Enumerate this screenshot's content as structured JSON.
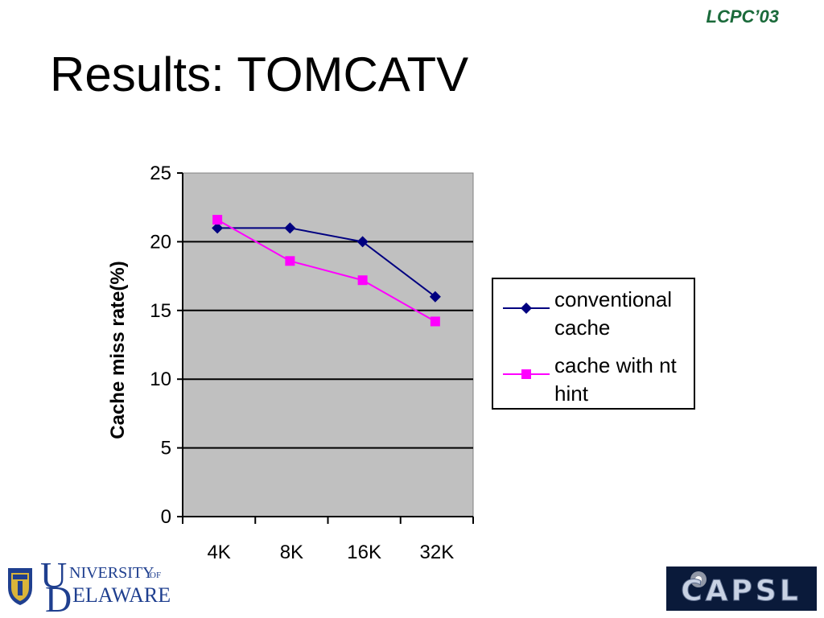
{
  "header": {
    "conference_tag": "LCPC’03",
    "title": "Results: TOMCATV"
  },
  "logos": {
    "left": "UNIVERSITY OF DELAWARE",
    "right": "CAPSL"
  },
  "colors": {
    "plot_background": "#c0c0c0",
    "series_conventional": "#000080",
    "series_nt_hint": "#ff00ff",
    "tag_color": "#1a6a3a"
  },
  "chart_data": {
    "type": "line",
    "title": "",
    "xlabel": "",
    "ylabel": "Cache miss rate(%)",
    "categories": [
      "4K",
      "8K",
      "16K",
      "32K"
    ],
    "ylim": [
      0,
      25
    ],
    "yticks": [
      0,
      5,
      10,
      15,
      20,
      25
    ],
    "grid": "horizontal",
    "legend_position": "right",
    "series": [
      {
        "name": "conventional cache",
        "marker": "diamond",
        "values": [
          21.0,
          21.0,
          20.0,
          16.0
        ]
      },
      {
        "name": "cache with nt hint",
        "marker": "square",
        "values": [
          21.6,
          18.6,
          17.2,
          14.2
        ]
      }
    ]
  }
}
